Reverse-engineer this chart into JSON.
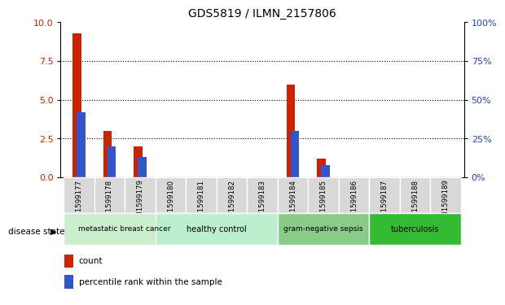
{
  "title": "GDS5819 / ILMN_2157806",
  "samples": [
    "GSM1599177",
    "GSM1599178",
    "GSM1599179",
    "GSM1599180",
    "GSM1599181",
    "GSM1599182",
    "GSM1599183",
    "GSM1599184",
    "GSM1599185",
    "GSM1599186",
    "GSM1599187",
    "GSM1599188",
    "GSM1599189"
  ],
  "count_values": [
    9.3,
    3.0,
    2.0,
    0,
    0,
    0,
    0,
    6.0,
    1.2,
    0,
    0,
    0,
    0
  ],
  "percentile_values": [
    42,
    20,
    13,
    0,
    0,
    0,
    0,
    30,
    8,
    0,
    0,
    0,
    0
  ],
  "ylim_left": [
    0,
    10
  ],
  "ylim_right": [
    0,
    100
  ],
  "yticks_left": [
    0,
    2.5,
    5,
    7.5,
    10
  ],
  "yticks_right": [
    0,
    25,
    50,
    75,
    100
  ],
  "bar_color_count": "#cc2200",
  "bar_color_percentile": "#3355cc",
  "tick_color_left": "#cc2200",
  "tick_color_right": "#2244bb",
  "grid_color": "#000000",
  "tick_bg_color": "#d8d8d8",
  "group_defs": [
    {
      "label": "metastatic breast cancer",
      "start": 0,
      "end": 3,
      "color": "#cceecc"
    },
    {
      "label": "healthy control",
      "start": 3,
      "end": 6,
      "color": "#bbeecc"
    },
    {
      "label": "gram-negative sepsis",
      "start": 7,
      "end": 9,
      "color": "#88cc88"
    },
    {
      "label": "tuberculosis",
      "start": 10,
      "end": 12,
      "color": "#33bb33"
    }
  ],
  "legend_items": [
    {
      "label": "count",
      "color": "#cc2200"
    },
    {
      "label": "percentile rank within the sample",
      "color": "#3355cc"
    }
  ],
  "disease_state_label": "disease state"
}
